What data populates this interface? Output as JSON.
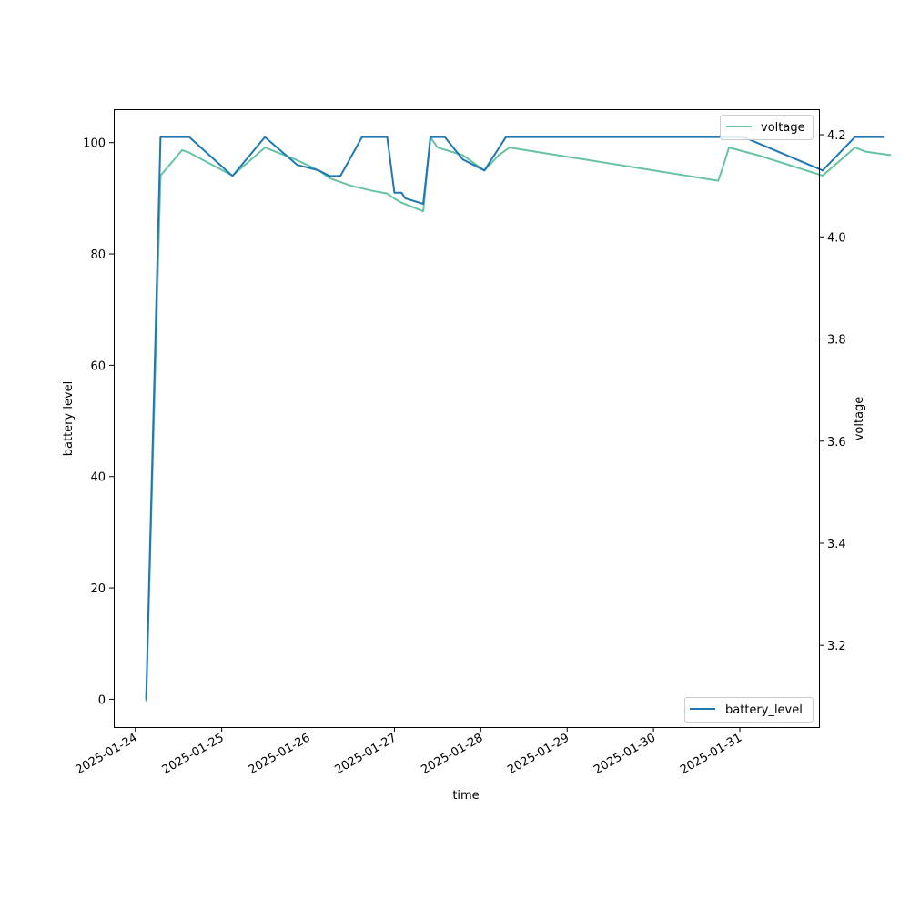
{
  "chart_data": {
    "type": "line",
    "xlabel": "time",
    "ylabel_left": "battery level",
    "ylabel_right": "voltage",
    "x_tick_labels": [
      "2025-01-24",
      "2025-01-25",
      "2025-01-26",
      "2025-01-27",
      "2025-01-28",
      "2025-01-29",
      "2025-01-30",
      "2025-01-31"
    ],
    "y_left_ticks": [
      0,
      20,
      40,
      60,
      80,
      100
    ],
    "y_right_ticks": [
      3.2,
      3.4,
      3.6,
      3.8,
      4.0,
      4.2
    ],
    "ylim_left": [
      -5,
      106
    ],
    "ylim_right": [
      3.04,
      4.25
    ],
    "xlim": [
      "2025-01-23T18:00",
      "2025-01-31T22:00"
    ],
    "series": [
      {
        "name": "battery_level",
        "axis": "left",
        "color": "#1f77b4",
        "legend_position": "lower right",
        "points": [
          [
            "2025-01-24T03:00",
            0
          ],
          [
            "2025-01-24T07:00",
            101
          ],
          [
            "2025-01-24T15:00",
            101
          ],
          [
            "2025-01-25T03:00",
            94
          ],
          [
            "2025-01-25T12:00",
            101
          ],
          [
            "2025-01-25T21:00",
            96
          ],
          [
            "2025-01-26T03:00",
            95
          ],
          [
            "2025-01-26T06:00",
            94
          ],
          [
            "2025-01-26T09:00",
            94
          ],
          [
            "2025-01-26T15:00",
            101
          ],
          [
            "2025-01-26T22:00",
            101
          ],
          [
            "2025-01-27T00:00",
            91
          ],
          [
            "2025-01-27T02:00",
            91
          ],
          [
            "2025-01-27T03:00",
            90
          ],
          [
            "2025-01-27T08:00",
            89
          ],
          [
            "2025-01-27T10:00",
            101
          ],
          [
            "2025-01-27T14:00",
            101
          ],
          [
            "2025-01-27T19:00",
            97
          ],
          [
            "2025-01-28T01:00",
            95
          ],
          [
            "2025-01-28T07:00",
            101
          ],
          [
            "2025-01-31T01:00",
            101
          ],
          [
            "2025-01-31T23:00",
            95
          ],
          [
            "2025-02-01T08:00",
            101
          ],
          [
            "2025-02-01T16:00",
            101
          ]
        ]
      },
      {
        "name": "voltage",
        "axis": "right",
        "color": "#66c2a5",
        "legend_position": "upper right",
        "points": [
          [
            "2025-01-24T03:00",
            3.09
          ],
          [
            "2025-01-24T07:00",
            4.12
          ],
          [
            "2025-01-24T13:00",
            4.17
          ],
          [
            "2025-01-24T15:00",
            4.165
          ],
          [
            "2025-01-25T03:00",
            4.12
          ],
          [
            "2025-01-25T12:00",
            4.175
          ],
          [
            "2025-01-25T21:00",
            4.15
          ],
          [
            "2025-01-26T03:00",
            4.13
          ],
          [
            "2025-01-26T06:00",
            4.115
          ],
          [
            "2025-01-26T12:00",
            4.1
          ],
          [
            "2025-01-26T18:00",
            4.09
          ],
          [
            "2025-01-26T22:00",
            4.085
          ],
          [
            "2025-01-27T00:00",
            4.075
          ],
          [
            "2025-01-27T02:00",
            4.067
          ],
          [
            "2025-01-27T08:00",
            4.05
          ],
          [
            "2025-01-27T10:00",
            4.195
          ],
          [
            "2025-01-27T12:00",
            4.175
          ],
          [
            "2025-01-27T19:00",
            4.16
          ],
          [
            "2025-01-28T01:00",
            4.13
          ],
          [
            "2025-01-28T05:00",
            4.16
          ],
          [
            "2025-01-28T08:00",
            4.175
          ],
          [
            "2025-01-30T18:00",
            4.11
          ],
          [
            "2025-01-30T19:00",
            4.13
          ],
          [
            "2025-01-30T21:00",
            4.175
          ],
          [
            "2025-01-31T05:00",
            4.16
          ],
          [
            "2025-01-31T23:00",
            4.12
          ],
          [
            "2025-02-01T08:00",
            4.175
          ],
          [
            "2025-02-01T11:00",
            4.167
          ],
          [
            "2025-02-01T18:00",
            4.16
          ]
        ]
      }
    ]
  }
}
